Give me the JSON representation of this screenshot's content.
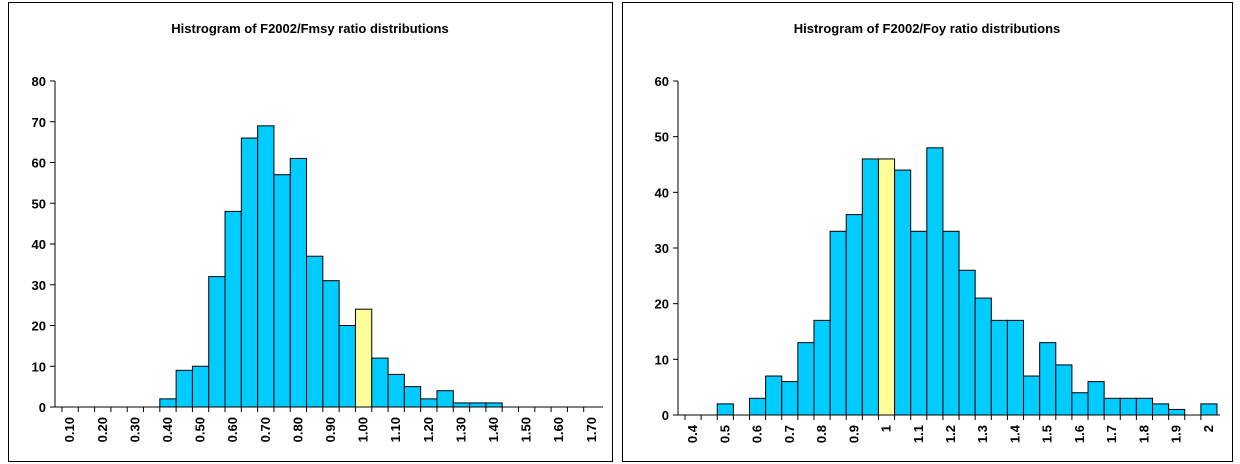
{
  "chart_data": [
    {
      "type": "bar",
      "title": "Histrogram of F2002/Fmsy ratio distributions",
      "categories": [
        "0.10",
        null,
        "0.20",
        null,
        "0.30",
        null,
        "0.40",
        null,
        "0.50",
        null,
        "0.60",
        null,
        "0.70",
        null,
        "0.80",
        null,
        "0.90",
        null,
        "1.00",
        null,
        "1.10",
        null,
        "1.20",
        null,
        "1.30",
        null,
        "1.40",
        null,
        "1.50",
        null,
        "1.60",
        null,
        "1.70"
      ],
      "values": [
        0,
        0,
        0,
        0,
        0,
        0,
        2,
        9,
        10,
        32,
        48,
        66,
        69,
        57,
        61,
        37,
        31,
        20,
        24,
        12,
        8,
        5,
        2,
        4,
        1,
        1,
        1,
        0,
        0,
        0,
        0,
        0,
        0
      ],
      "colors": [
        "#00ccff",
        "#00ccff",
        "#00ccff",
        "#00ccff",
        "#00ccff",
        "#00ccff",
        "#00ccff",
        "#00ccff",
        "#00ccff",
        "#00ccff",
        "#00ccff",
        "#00ccff",
        "#00ccff",
        "#00ccff",
        "#00ccff",
        "#00ccff",
        "#00ccff",
        "#00ccff",
        "#ffff99",
        "#00ccff",
        "#00ccff",
        "#00ccff",
        "#00ccff",
        "#00ccff",
        "#00ccff",
        "#00ccff",
        "#00ccff",
        "#00ccff",
        "#00ccff",
        "#00ccff",
        "#00ccff",
        "#00ccff",
        "#00ccff"
      ],
      "ylim": [
        0,
        80
      ],
      "yticks": [
        0,
        10,
        20,
        30,
        40,
        50,
        60,
        70,
        80
      ]
    },
    {
      "type": "bar",
      "title": "Histrogram of F2002/Foy ratio distributions",
      "categories": [
        "0.4",
        null,
        "0.5",
        null,
        "0.6",
        null,
        "0.7",
        null,
        "0.8",
        null,
        "0.9",
        null,
        "1",
        null,
        "1.1",
        null,
        "1.2",
        null,
        "1.3",
        null,
        "1.4",
        null,
        "1.5",
        null,
        "1.6",
        null,
        "1.7",
        null,
        "1.8",
        null,
        "1.9",
        null,
        "2"
      ],
      "values": [
        0,
        0,
        2,
        0,
        3,
        7,
        6,
        13,
        17,
        33,
        36,
        46,
        46,
        44,
        33,
        48,
        33,
        26,
        21,
        17,
        17,
        7,
        13,
        9,
        4,
        6,
        3,
        3,
        3,
        2,
        1,
        0,
        2
      ],
      "colors": [
        "#00ccff",
        "#00ccff",
        "#00ccff",
        "#00ccff",
        "#00ccff",
        "#00ccff",
        "#00ccff",
        "#00ccff",
        "#00ccff",
        "#00ccff",
        "#00ccff",
        "#00ccff",
        "#ffff99",
        "#00ccff",
        "#00ccff",
        "#00ccff",
        "#00ccff",
        "#00ccff",
        "#00ccff",
        "#00ccff",
        "#00ccff",
        "#00ccff",
        "#00ccff",
        "#00ccff",
        "#00ccff",
        "#00ccff",
        "#00ccff",
        "#00ccff",
        "#00ccff",
        "#00ccff",
        "#00ccff",
        "#00ccff",
        "#00ccff"
      ],
      "ylim": [
        0,
        60
      ],
      "yticks": [
        0,
        10,
        20,
        30,
        40,
        50,
        60
      ]
    }
  ]
}
